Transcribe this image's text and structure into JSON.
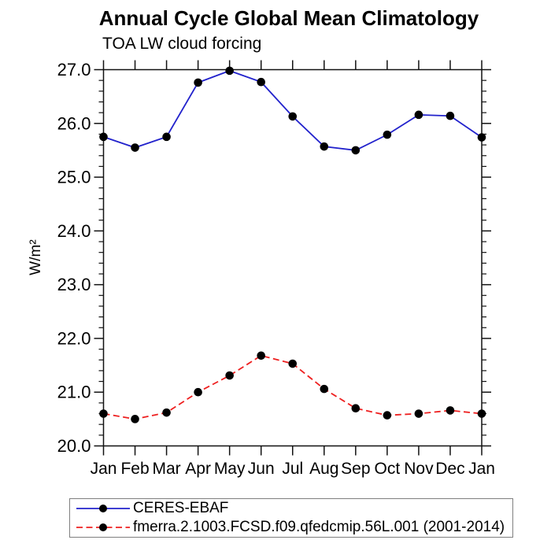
{
  "page": {
    "background": "#ffffff",
    "text_color": "#000000",
    "axis_color": "#111111"
  },
  "chart_data": {
    "type": "line",
    "title": "Annual Cycle Global Mean Climatology",
    "subtitle": "TOA LW cloud forcing",
    "ylabel": "W/m²",
    "x_categories": [
      "Jan",
      "Feb",
      "Mar",
      "Apr",
      "May",
      "Jun",
      "Jul",
      "Aug",
      "Sep",
      "Oct",
      "Nov",
      "Dec",
      "Jan"
    ],
    "ylim": [
      20.0,
      27.0
    ],
    "yticks": [
      {
        "v": 20,
        "label": "20.0"
      },
      {
        "v": 21,
        "label": "21.0"
      },
      {
        "v": 22,
        "label": "22.0"
      },
      {
        "v": 23,
        "label": "23.0"
      },
      {
        "v": 24,
        "label": "24.0"
      },
      {
        "v": 25,
        "label": "25.0"
      },
      {
        "v": 26,
        "label": "26.0"
      },
      {
        "v": 27,
        "label": "27.0"
      }
    ],
    "ytick_minor_step": 0.2,
    "grid": false,
    "legend_position": "bottom-left-box",
    "series": [
      {
        "name": "CERES-EBAF",
        "line_color": "#2222cc",
        "line_style": "solid",
        "marker": "filled-circle",
        "marker_color": "#000000",
        "values": [
          25.75,
          25.55,
          25.75,
          26.76,
          26.98,
          26.77,
          26.13,
          25.57,
          25.5,
          25.79,
          26.16,
          26.14,
          25.74
        ]
      },
      {
        "name": "fmerra.2.1003.FCSD.f09.qfedcmip.56L.001 (2001-2014)",
        "line_color": "#ee2020",
        "line_style": "dashed",
        "marker": "filled-circle",
        "marker_color": "#000000",
        "values": [
          20.6,
          20.5,
          20.62,
          21.0,
          21.31,
          21.68,
          21.53,
          21.06,
          20.7,
          20.57,
          20.6,
          20.66,
          20.6
        ]
      }
    ]
  }
}
